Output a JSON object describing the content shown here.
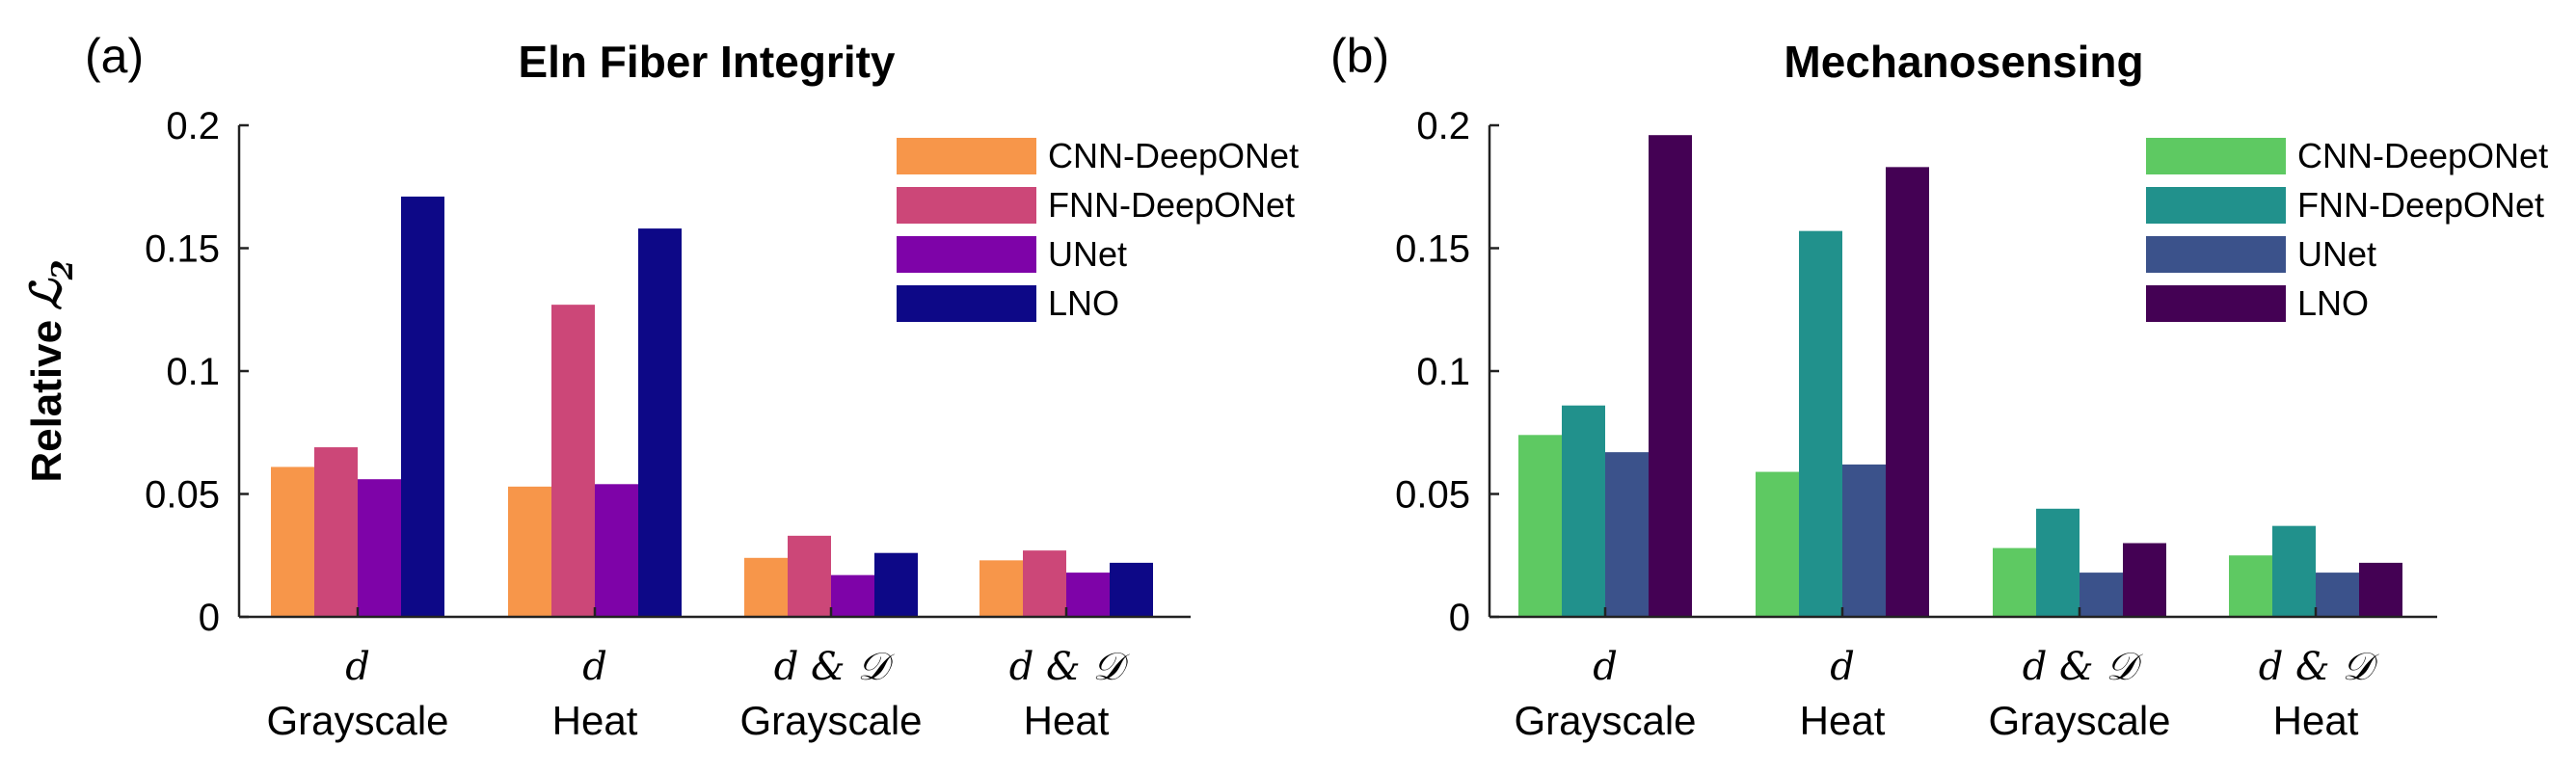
{
  "ylabel_prefix": "Relative",
  "ylabel_symbol": "ℒ",
  "ylabel_sub": "2",
  "chart_data": [
    {
      "type": "bar",
      "panel": "(a)",
      "title": "Eln Fiber Integrity",
      "ylim": [
        0,
        0.2
      ],
      "yticks": [
        "0",
        "0.05",
        "0.1",
        "0.15",
        "0.2"
      ],
      "categories": [
        {
          "top": "d",
          "bottom": "Grayscale"
        },
        {
          "top": "d",
          "bottom": "Heat"
        },
        {
          "top": "d & 𝒟",
          "bottom": "Grayscale"
        },
        {
          "top": "d & 𝒟",
          "bottom": "Heat"
        }
      ],
      "legend_position": "top-right",
      "grid": false,
      "series": [
        {
          "name": "CNN-DeepONet",
          "color": "#F7964A",
          "values": [
            0.061,
            0.053,
            0.024,
            0.023
          ]
        },
        {
          "name": "FNN-DeepONet",
          "color": "#CC4778",
          "values": [
            0.069,
            0.127,
            0.033,
            0.027
          ]
        },
        {
          "name": "UNet",
          "color": "#7E03A8",
          "values": [
            0.056,
            0.054,
            0.017,
            0.018
          ]
        },
        {
          "name": "LNO",
          "color": "#0D0887",
          "values": [
            0.171,
            0.158,
            0.026,
            0.022
          ]
        }
      ]
    },
    {
      "type": "bar",
      "panel": "(b)",
      "title": "Mechanosensing",
      "ylim": [
        0,
        0.2
      ],
      "yticks": [
        "0",
        "0.05",
        "0.1",
        "0.15",
        "0.2"
      ],
      "categories": [
        {
          "top": "d",
          "bottom": "Grayscale"
        },
        {
          "top": "d",
          "bottom": "Heat"
        },
        {
          "top": "d & 𝒟",
          "bottom": "Grayscale"
        },
        {
          "top": "d & 𝒟",
          "bottom": "Heat"
        }
      ],
      "legend_position": "top-right",
      "grid": false,
      "series": [
        {
          "name": "CNN-DeepONet",
          "color": "#5EC962",
          "values": [
            0.074,
            0.059,
            0.028,
            0.025
          ]
        },
        {
          "name": "FNN-DeepONet",
          "color": "#21918C",
          "values": [
            0.086,
            0.157,
            0.044,
            0.037
          ]
        },
        {
          "name": "UNet",
          "color": "#3B528B",
          "values": [
            0.067,
            0.062,
            0.018,
            0.018
          ]
        },
        {
          "name": "LNO",
          "color": "#440154",
          "values": [
            0.196,
            0.183,
            0.03,
            0.022
          ]
        }
      ]
    }
  ]
}
